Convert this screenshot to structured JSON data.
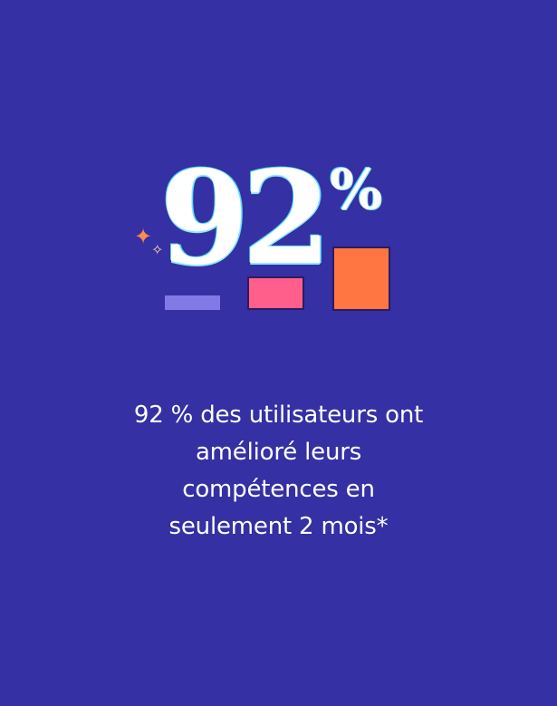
{
  "hero": {
    "number": "92",
    "percent": "%"
  },
  "caption": {
    "line1": "92 % des utilisateurs ont",
    "line2": "amélioré leurs",
    "line3": "compétences en",
    "line4": "seulement 2 mois*"
  },
  "decor": {
    "sparkle_large": "✦",
    "sparkle_small": "✧"
  },
  "colors": {
    "background": "#3530a3",
    "text": "#ffffff",
    "purple_bar": "#8179e6",
    "pink_bar": "#ff5f8a",
    "orange_bar": "#ff7642",
    "sparkle_orange": "#ff8a4f"
  }
}
